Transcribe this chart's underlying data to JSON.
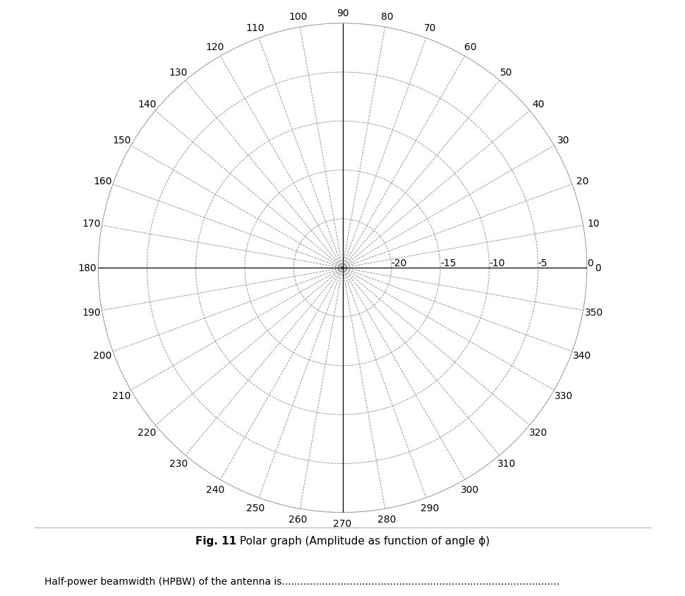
{
  "title_bold": "Fig. 11",
  "title_normal": " Polar graph (Amplitude as function of angle ϕ)",
  "caption": "Half-power beamwidth (HPBW) of the antenna is",
  "r_labels": [
    "-20",
    "-15",
    "-10",
    "-5",
    "0"
  ],
  "r_values": [
    -20,
    -15,
    -10,
    -5,
    0
  ],
  "r_min": -25,
  "r_max": 0,
  "angle_labels": [
    0,
    10,
    20,
    30,
    40,
    50,
    60,
    70,
    80,
    90,
    100,
    110,
    120,
    130,
    140,
    150,
    160,
    170,
    180,
    190,
    200,
    210,
    220,
    230,
    240,
    250,
    260,
    270,
    280,
    290,
    300,
    310,
    320,
    330,
    340,
    350
  ],
  "grid_color": "#888888",
  "grid_linestyle": "--",
  "grid_linewidth": 0.6,
  "axis_color": "#000000",
  "axis_linewidth": 0.9,
  "label_fontsize": 10,
  "caption_fontsize": 10,
  "title_fontsize": 11,
  "background_color": "#ffffff",
  "fig_width": 9.71,
  "fig_height": 8.45,
  "dpi": 100
}
